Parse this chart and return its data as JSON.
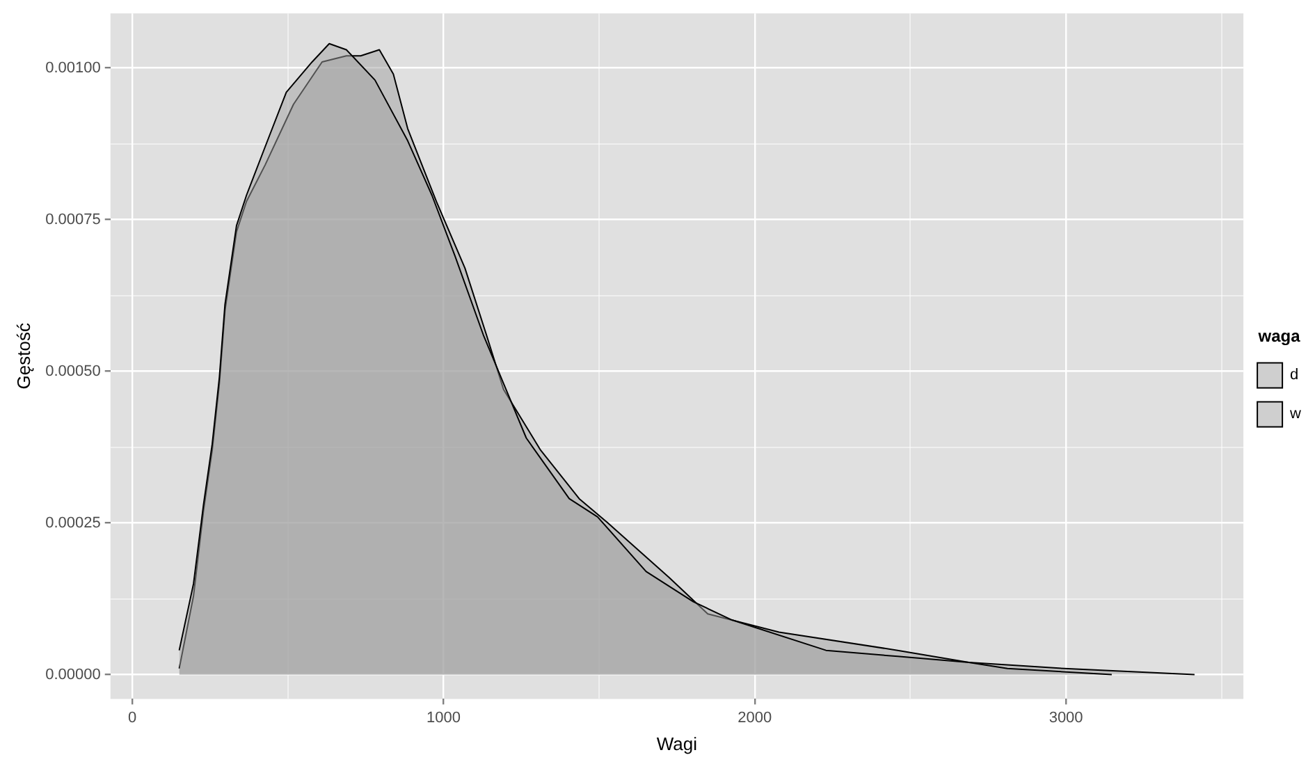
{
  "chart_data": {
    "type": "area",
    "xlabel": "Wagi",
    "ylabel": "Gęstość",
    "legend_title": "waga",
    "legend": "right",
    "grid": true,
    "xlim": [
      -70,
      3570
    ],
    "xticks": [
      0,
      {
        "value": 500,
        "label": null
      },
      1000,
      {
        "value": 1500,
        "label": null
      },
      2000,
      {
        "value": 2500,
        "label": null
      },
      3000,
      {
        "value": 3500,
        "label": null
      }
    ],
    "ylim": [
      -4e-05,
      0.00109
    ],
    "yticks": [
      {
        "value": 0,
        "label": "0.00000"
      },
      {
        "value": 0.000125,
        "label": null
      },
      {
        "value": 0.00025,
        "label": "0.00025"
      },
      {
        "value": 0.000375,
        "label": null
      },
      {
        "value": 0.0005,
        "label": "0.00050"
      },
      {
        "value": 0.000625,
        "label": null
      },
      {
        "value": 0.00075,
        "label": "0.00075"
      },
      {
        "value": 0.000875,
        "label": null
      },
      {
        "value": 0.001,
        "label": "0.00100"
      }
    ],
    "series": [
      {
        "name": "d",
        "color": "#a0a0a0",
        "x": [
          151,
          197,
          229,
          257,
          280,
          298,
          335,
          367,
          427,
          495,
          578,
          633,
          688,
          780,
          885,
          963,
          1037,
          1128,
          1193,
          1266,
          1404,
          1495,
          1651,
          1803,
          1927,
          2229,
          2459,
          2688,
          2812,
          3147
        ],
        "values": [
          4e-05,
          0.00015,
          0.00028,
          0.00038,
          0.00049,
          0.00061,
          0.00074,
          0.00079,
          0.00087,
          0.00096,
          0.00101,
          0.00104,
          0.00103,
          0.00098,
          0.00088,
          0.00079,
          0.00069,
          0.00056,
          0.00048,
          0.00039,
          0.00029,
          0.00026,
          0.00017,
          0.00012,
          9e-05,
          4e-05,
          3e-05,
          2e-05,
          1e-05,
          0
        ]
      },
      {
        "name": "w",
        "color": "#a0a0a0",
        "x": [
          151,
          197,
          229,
          257,
          280,
          298,
          335,
          367,
          427,
          518,
          610,
          688,
          734,
          794,
          839,
          885,
          977,
          1069,
          1138,
          1193,
          1312,
          1436,
          1528,
          1725,
          1849,
          2078,
          2459,
          2688,
          2995,
          3413
        ],
        "values": [
          1e-05,
          0.00013,
          0.00027,
          0.00037,
          0.00048,
          0.0006,
          0.00073,
          0.00078,
          0.00084,
          0.00094,
          0.00101,
          0.00102,
          0.00102,
          0.00103,
          0.00099,
          0.0009,
          0.00078,
          0.00067,
          0.00056,
          0.00047,
          0.00037,
          0.00029,
          0.00025,
          0.00016,
          0.0001,
          7e-05,
          4e-05,
          2e-05,
          1e-05,
          0
        ]
      }
    ]
  }
}
